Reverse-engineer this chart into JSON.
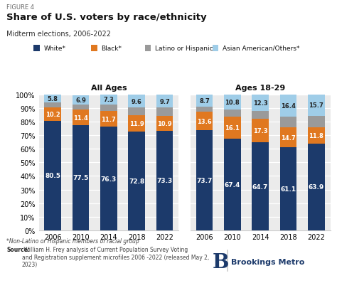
{
  "figure_label": "FIGURE 4",
  "title": "Share of U.S. voters by race/ethnicity",
  "subtitle": "Midterm elections, 2006-2022",
  "years": [
    "2006",
    "2010",
    "2014",
    "2018",
    "2022"
  ],
  "white_all": [
    80.5,
    77.5,
    76.3,
    72.8,
    73.3
  ],
  "black_all": [
    10.2,
    11.4,
    11.7,
    11.9,
    10.9
  ],
  "latino_all": [
    3.5,
    3.7,
    4.7,
    5.7,
    6.1
  ],
  "asian_all": [
    5.8,
    6.9,
    7.3,
    9.6,
    9.7
  ],
  "white_young": [
    73.7,
    67.4,
    64.7,
    61.1,
    63.9
  ],
  "black_young": [
    13.6,
    16.1,
    17.3,
    14.7,
    11.8
  ],
  "latino_young": [
    3.9,
    5.7,
    5.7,
    7.8,
    8.6
  ],
  "asian_young": [
    8.7,
    10.8,
    12.3,
    16.4,
    15.7
  ],
  "colors": {
    "white": "#1c3a6b",
    "black": "#e07820",
    "latino": "#9a9a9a",
    "asian": "#9fcde8"
  },
  "legend_labels": [
    "White*",
    "Black*",
    "Latino or Hispanic",
    "Asian American/Others*"
  ],
  "footnote1": "*Non-Latino or Hispanic members of racial group",
  "footnote2_bold": "Source:",
  "footnote2_rest": " William H. Frey analysis of Current Population Survey Voting\nand Registration supplement microfiles 2006 -2022 (released May 2,\n2023)",
  "bar_width": 0.6,
  "yticks": [
    0,
    10,
    20,
    30,
    40,
    50,
    60,
    70,
    80,
    90,
    100
  ],
  "ytick_labels": [
    "0%",
    "10%",
    "20%",
    "30%",
    "40%",
    "50%",
    "60%",
    "70%",
    "80%",
    "90%",
    "100%"
  ]
}
